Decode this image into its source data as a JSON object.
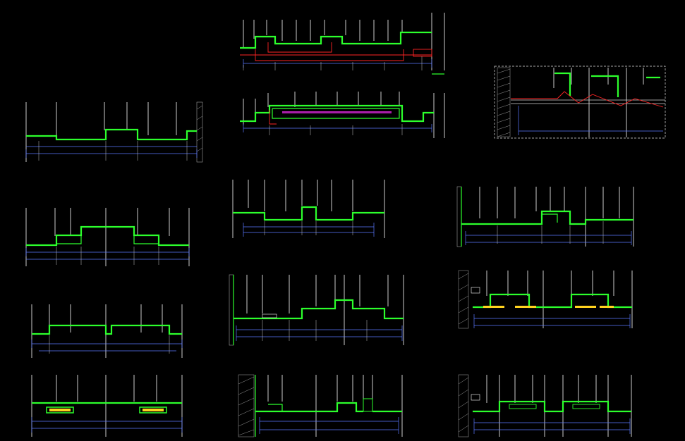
{
  "title": "",
  "colors": {
    "background": "#000000",
    "ceiling": "#2cff2c",
    "wall": "#ffffff",
    "dimension": "#5a79ff",
    "service": "#ff2424",
    "light": "#ff2cff",
    "accent": "#ffd21e"
  },
  "sections": [
    {
      "id": "s1",
      "labels": [
        "",
        "",
        "",
        ""
      ]
    },
    {
      "id": "s2",
      "labels": [
        "",
        "",
        "",
        ""
      ]
    },
    {
      "id": "s3",
      "labels": [
        "",
        "",
        "",
        ""
      ]
    },
    {
      "id": "s4",
      "labels": [
        "",
        "",
        "",
        ""
      ]
    },
    {
      "id": "s5",
      "labels": [
        "",
        "",
        "",
        ""
      ]
    },
    {
      "id": "s6",
      "labels": [
        "",
        "",
        "",
        ""
      ]
    },
    {
      "id": "s7",
      "labels": [
        "",
        "",
        "",
        ""
      ]
    },
    {
      "id": "s8",
      "labels": [
        "",
        "",
        "",
        ""
      ]
    },
    {
      "id": "s9",
      "labels": [
        "",
        "",
        "",
        ""
      ]
    },
    {
      "id": "s10",
      "labels": [
        "",
        "",
        "",
        ""
      ]
    },
    {
      "id": "s11",
      "labels": [
        "",
        "",
        "",
        ""
      ]
    },
    {
      "id": "s12",
      "labels": [
        "",
        "",
        "",
        ""
      ]
    },
    {
      "id": "s13",
      "labels": [
        "",
        "",
        "",
        ""
      ]
    },
    {
      "id": "s14",
      "labels": [
        "",
        "",
        "",
        ""
      ]
    }
  ]
}
